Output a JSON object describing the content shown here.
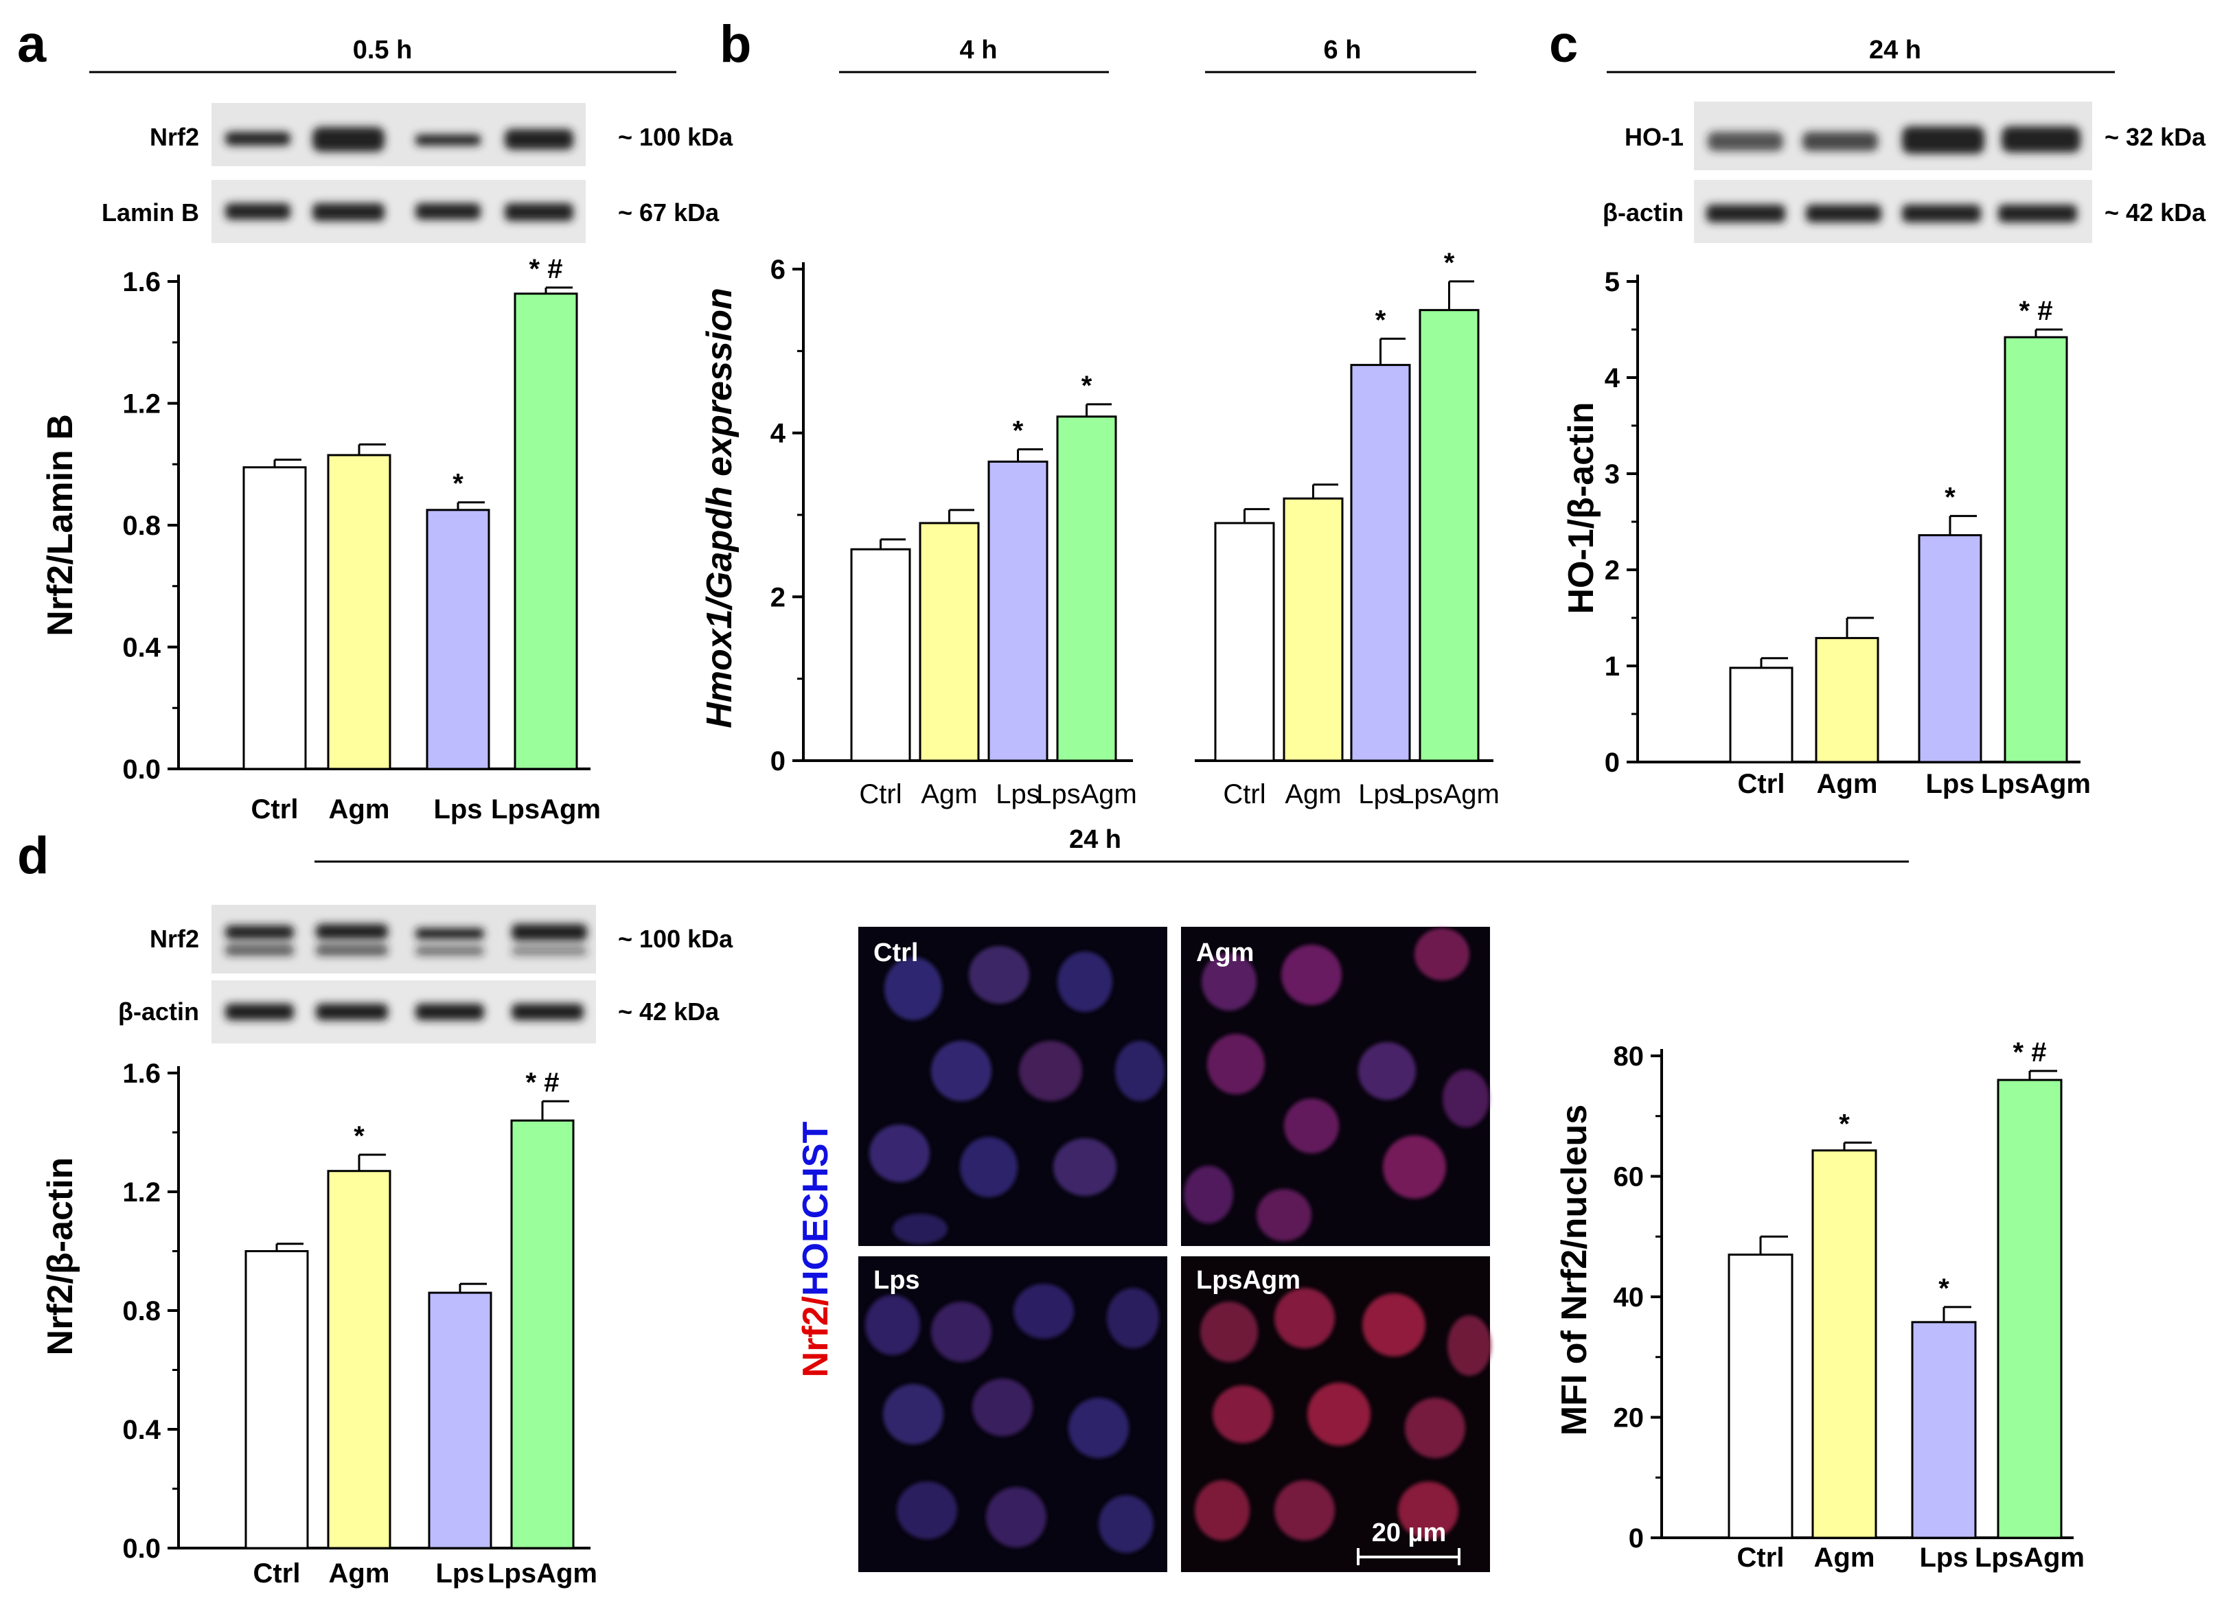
{
  "colors": {
    "ctrl": "#ffffff",
    "agm": "#ffff9e",
    "lps": "#bcbcff",
    "lpsagm": "#9aff9a"
  },
  "panel_letters": {
    "a": "a",
    "b": "b",
    "c": "c",
    "d": "d"
  },
  "time_labels": {
    "a": "0.5 h",
    "b1": "4 h",
    "b2": "6 h",
    "c": "24 h",
    "d": "24 h"
  },
  "blots": {
    "a": [
      {
        "label": "Nrf2",
        "kda": "~ 100 kDa"
      },
      {
        "label": "Lamin B",
        "kda": "~ 67 kDa"
      }
    ],
    "c": [
      {
        "label": "HO-1",
        "kda": "~ 32 kDa"
      },
      {
        "label": "β-actin",
        "kda": "~ 42 kDa"
      }
    ],
    "d": [
      {
        "label": "Nrf2",
        "kda": "~ 100 kDa"
      },
      {
        "label": "β-actin",
        "kda": "~ 42 kDa"
      }
    ]
  },
  "microscopy": {
    "stain_label_red": "Nrf2",
    "stain_label_sep": "/",
    "stain_label_blue": "HOECHST",
    "panels": [
      "Ctrl",
      "Agm",
      "Lps",
      "LpsAgm"
    ],
    "scale_bar": "20 µm"
  },
  "chart_data": [
    {
      "id": "a",
      "type": "bar",
      "categories": [
        "Ctrl",
        "Agm",
        "Lps",
        "LpsAgm"
      ],
      "values": [
        0.99,
        1.03,
        0.85,
        1.56
      ],
      "errors": [
        0.025,
        0.035,
        0.025,
        0.02
      ],
      "sig": [
        "",
        "",
        "*",
        "*#"
      ],
      "ylabel": "Nrf2/Lamin B",
      "ylim": [
        0,
        1.6
      ],
      "yticks": [
        "0.0",
        "0.4",
        "0.8",
        "1.2",
        "1.6"
      ]
    },
    {
      "id": "b1",
      "type": "bar",
      "categories": [
        "Ctrl",
        "Agm",
        "Lps",
        "LpsAgm"
      ],
      "values": [
        2.58,
        2.9,
        3.65,
        4.2
      ],
      "errors": [
        0.12,
        0.16,
        0.15,
        0.15
      ],
      "sig": [
        "",
        "",
        "*",
        "*"
      ],
      "ylabel": "Hmox1/Gapdh expression",
      "ylim": [
        0,
        6
      ],
      "yticks": [
        "0",
        "2",
        "4",
        "6"
      ]
    },
    {
      "id": "b2",
      "type": "bar",
      "categories": [
        "Ctrl",
        "Agm",
        "Lps",
        "LpsAgm"
      ],
      "values": [
        2.9,
        3.2,
        4.83,
        5.5
      ],
      "errors": [
        0.17,
        0.17,
        0.32,
        0.35
      ],
      "sig": [
        "",
        "",
        "*",
        "*"
      ],
      "ylim": [
        0,
        6
      ]
    },
    {
      "id": "c",
      "type": "bar",
      "categories": [
        "Ctrl",
        "Agm",
        "Lps",
        "LpsAgm"
      ],
      "values": [
        0.98,
        1.29,
        2.36,
        4.42
      ],
      "errors": [
        0.1,
        0.21,
        0.2,
        0.08
      ],
      "sig": [
        "",
        "",
        "*",
        "*#"
      ],
      "ylabel": "HO-1/β-actin",
      "ylim": [
        0,
        5
      ],
      "yticks": [
        "0",
        "1",
        "2",
        "3",
        "4",
        "5"
      ]
    },
    {
      "id": "d1",
      "type": "bar",
      "categories": [
        "Ctrl",
        "Agm",
        "Lps",
        "LpsAgm"
      ],
      "values": [
        1.0,
        1.27,
        0.86,
        1.44
      ],
      "errors": [
        0.025,
        0.055,
        0.03,
        0.065
      ],
      "sig": [
        "",
        "*",
        "",
        "*#"
      ],
      "ylabel": "Nrf2/β-actin",
      "ylim": [
        0,
        1.6
      ],
      "yticks": [
        "0.0",
        "0.4",
        "0.8",
        "1.2",
        "1.6"
      ]
    },
    {
      "id": "d2",
      "type": "bar",
      "categories": [
        "Ctrl",
        "Agm",
        "Lps",
        "LpsAgm"
      ],
      "values": [
        47.0,
        64.3,
        35.8,
        76.0
      ],
      "errors": [
        3.0,
        1.3,
        2.5,
        1.5
      ],
      "sig": [
        "",
        "*",
        "*",
        "*#"
      ],
      "ylabel": "MFI of Nrf2/nucleus",
      "ylim": [
        0,
        80
      ],
      "yticks": [
        "0",
        "20",
        "40",
        "60",
        "80"
      ]
    }
  ]
}
